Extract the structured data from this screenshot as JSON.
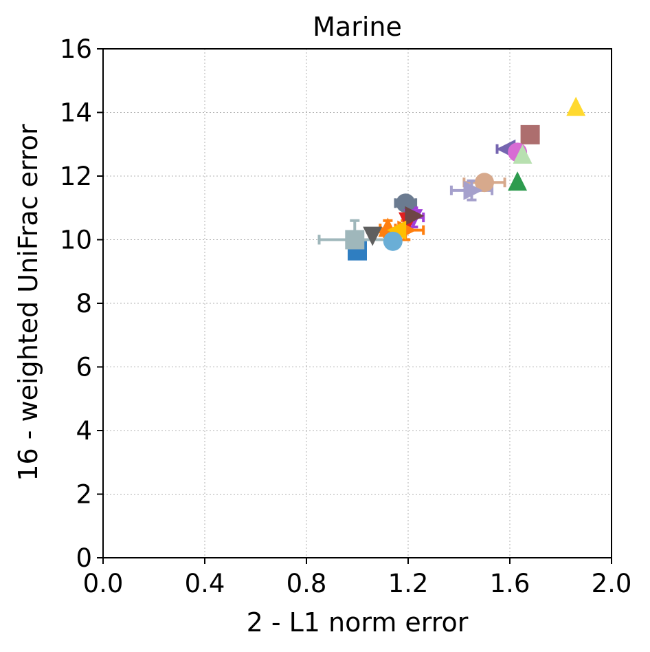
{
  "chart_data": {
    "type": "scatter",
    "title": "Marine",
    "xlabel": "2 - L1 norm error",
    "ylabel": "16 - weighted UniFrac error",
    "xlim": [
      0.0,
      2.0
    ],
    "ylim": [
      0,
      16
    ],
    "xticks": [
      "0.0",
      "0.4",
      "0.8",
      "1.2",
      "1.6",
      "2.0"
    ],
    "yticks": [
      "0",
      "2",
      "4",
      "6",
      "8",
      "10",
      "12",
      "14",
      "16"
    ],
    "grid": true,
    "points": [
      {
        "x": 1.86,
        "y": 14.15,
        "marker": "triangle-up",
        "color": "#ffd92f"
      },
      {
        "x": 1.68,
        "y": 13.3,
        "marker": "square",
        "color": "#ad6e6e",
        "xerr": 0.03,
        "yerr": 0.2
      },
      {
        "x": 1.59,
        "y": 12.85,
        "marker": "triangle-left",
        "color": "#7565b0",
        "xerr": 0.04
      },
      {
        "x": 1.63,
        "y": 12.75,
        "marker": "circle",
        "color": "#d86bd4"
      },
      {
        "x": 1.65,
        "y": 12.65,
        "marker": "triangle-up",
        "color": "#b8e0b0"
      },
      {
        "x": 1.63,
        "y": 11.8,
        "marker": "triangle-up",
        "color": "#2d9b4e"
      },
      {
        "x": 1.5,
        "y": 11.8,
        "marker": "circle",
        "color": "#d7a98c",
        "xerr": 0.08,
        "yerr": 0.2
      },
      {
        "x": 1.45,
        "y": 11.55,
        "marker": "triangle-right",
        "color": "#a5a0cc",
        "xerr": 0.08,
        "yerr": 0.3
      },
      {
        "x": 1.19,
        "y": 11.15,
        "marker": "circle",
        "color": "#6b7b90",
        "xerr": 0.04,
        "yerr": 0.2
      },
      {
        "x": 1.22,
        "y": 10.7,
        "marker": "triangle-down",
        "color": "#a03ed8",
        "xerr": 0.04,
        "yerr": 0.3
      },
      {
        "x": 1.2,
        "y": 10.6,
        "marker": "triangle-down",
        "color": "#e02020"
      },
      {
        "x": 1.22,
        "y": 10.75,
        "marker": "triangle-right",
        "color": "#6e4545"
      },
      {
        "x": 1.19,
        "y": 10.3,
        "marker": "triangle-right",
        "color": "#ff7f0e",
        "xerr": 0.07,
        "yerr": 0.3
      },
      {
        "x": 1.12,
        "y": 10.35,
        "marker": "triangle-up",
        "color": "#ff7f0e",
        "xerr": 0.03,
        "yerr": 0.25
      },
      {
        "x": 1.06,
        "y": 10.15,
        "marker": "triangle-down",
        "color": "#5f5f5f"
      },
      {
        "x": 1.16,
        "y": 10.3,
        "marker": "triangle-left",
        "color": "#ffbf00"
      },
      {
        "x": 1.14,
        "y": 9.95,
        "marker": "circle",
        "color": "#6aaed6"
      },
      {
        "x": 1.0,
        "y": 9.65,
        "marker": "square",
        "color": "#2f7ec1"
      },
      {
        "x": 0.99,
        "y": 10.0,
        "marker": "square",
        "color": "#9fb7bb",
        "xerr": 0.14,
        "yerr": 0.6
      }
    ]
  }
}
